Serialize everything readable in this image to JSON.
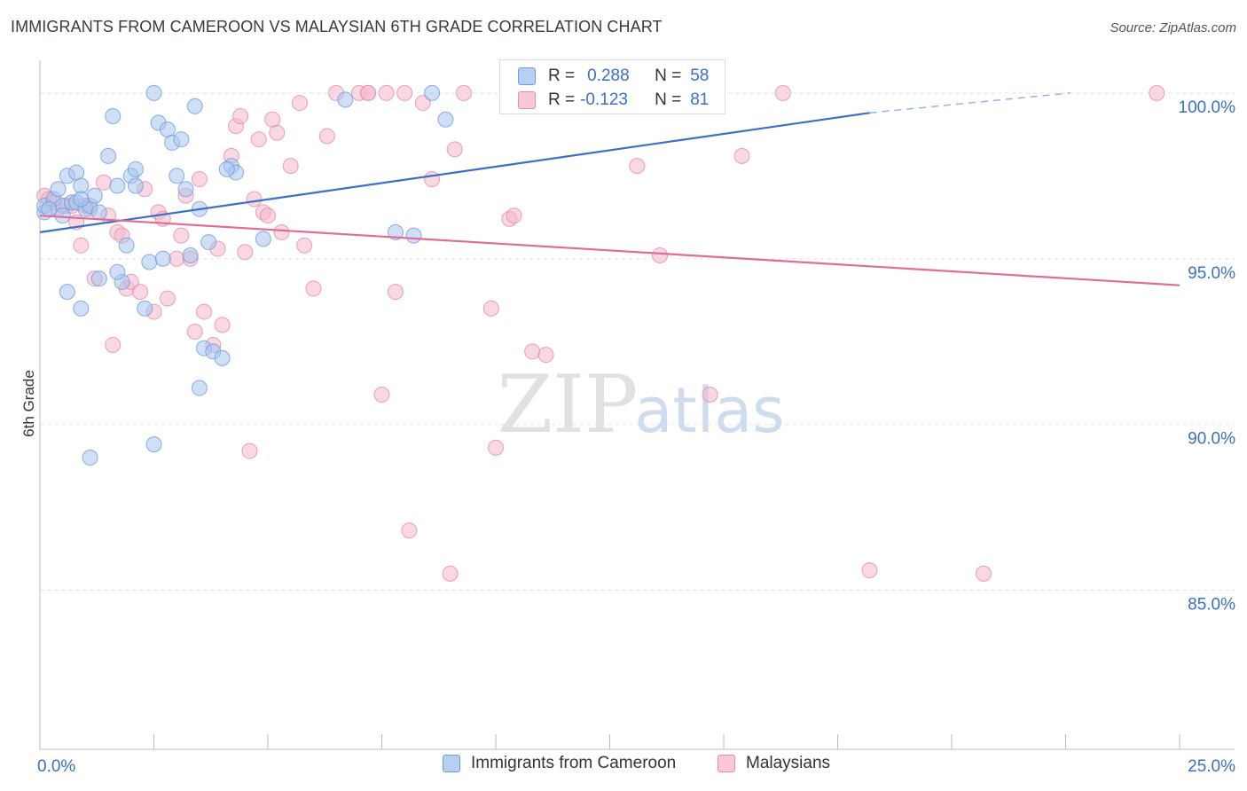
{
  "title": "IMMIGRANTS FROM CAMEROON VS MALAYSIAN 6TH GRADE CORRELATION CHART",
  "source": "Source: ZipAtlas.com",
  "watermark": {
    "zip": "ZIP",
    "atlas": "atlas"
  },
  "colors": {
    "blue": "#3a6fc4",
    "blue_fill": "#a8c4ef",
    "pink": "#e36b97",
    "pink_fill": "#f4b8cc",
    "tick_text": "#3a6fc4"
  },
  "legend": {
    "r_label": "R =",
    "n_label": "N =",
    "series": [
      {
        "r": "0.288",
        "n": "58"
      },
      {
        "r": "-0.123",
        "n": "81"
      }
    ]
  },
  "bottom_legend": [
    "Immigrants from Cameroon",
    "Malaysians"
  ],
  "chart_data": {
    "type": "scatter",
    "title": "IMMIGRANTS FROM CAMEROON VS MALAYSIAN 6TH GRADE CORRELATION CHART",
    "xlabel": "",
    "ylabel": "6th Grade",
    "xlim": [
      0,
      25
    ],
    "ylim": [
      80.2,
      101.2
    ],
    "x_tick_labels": [
      "0.0%",
      "25.0%"
    ],
    "y_ticks": [
      85,
      90,
      95,
      100
    ],
    "y_tick_labels": [
      "85.0%",
      "90.0%",
      "95.0%",
      "100.0%"
    ],
    "grid": true,
    "series": [
      {
        "name": "Immigrants from Cameroon",
        "r": 0.288,
        "n": 58,
        "trend": {
          "x0": 0,
          "y0": 95.8,
          "x1": 18.2,
          "y1": 99.4,
          "dash_x1": 22.6,
          "dash_y1": 100.0
        },
        "points": [
          [
            0.1,
            96.4
          ],
          [
            0.1,
            96.6
          ],
          [
            0.3,
            96.8
          ],
          [
            0.4,
            97.1
          ],
          [
            0.5,
            96.6
          ],
          [
            0.6,
            97.5
          ],
          [
            0.7,
            96.7
          ],
          [
            0.8,
            96.7
          ],
          [
            0.8,
            97.6
          ],
          [
            0.9,
            97.2
          ],
          [
            1.0,
            96.5
          ],
          [
            1.1,
            96.6
          ],
          [
            1.2,
            96.9
          ],
          [
            1.3,
            94.4
          ],
          [
            1.5,
            98.1
          ],
          [
            1.6,
            99.3
          ],
          [
            1.8,
            94.3
          ],
          [
            1.9,
            95.4
          ],
          [
            2.0,
            97.5
          ],
          [
            2.1,
            97.7
          ],
          [
            2.1,
            97.2
          ],
          [
            2.3,
            93.5
          ],
          [
            2.4,
            94.9
          ],
          [
            2.5,
            100.0
          ],
          [
            2.6,
            99.1
          ],
          [
            2.8,
            98.9
          ],
          [
            2.9,
            98.5
          ],
          [
            3.0,
            97.5
          ],
          [
            3.1,
            98.6
          ],
          [
            3.2,
            97.1
          ],
          [
            3.3,
            95.1
          ],
          [
            3.4,
            99.6
          ],
          [
            3.5,
            91.1
          ],
          [
            3.6,
            92.3
          ],
          [
            3.7,
            95.5
          ],
          [
            3.8,
            92.2
          ],
          [
            4.0,
            92.0
          ],
          [
            4.2,
            97.8
          ],
          [
            4.3,
            97.6
          ],
          [
            4.9,
            95.6
          ],
          [
            6.7,
            99.8
          ],
          [
            7.8,
            95.8
          ],
          [
            8.2,
            95.7
          ],
          [
            8.6,
            100.0
          ],
          [
            8.9,
            99.2
          ],
          [
            0.9,
            93.5
          ],
          [
            1.1,
            89.0
          ],
          [
            2.5,
            89.4
          ],
          [
            1.7,
            94.6
          ],
          [
            0.6,
            94.0
          ],
          [
            3.5,
            96.5
          ],
          [
            2.7,
            95.0
          ],
          [
            1.3,
            96.4
          ],
          [
            0.2,
            96.5
          ],
          [
            0.5,
            96.3
          ],
          [
            0.9,
            96.8
          ],
          [
            4.1,
            97.7
          ],
          [
            1.7,
            97.2
          ]
        ]
      },
      {
        "name": "Malaysians",
        "r": -0.123,
        "n": 81,
        "trend": {
          "x0": 0,
          "y0": 96.3,
          "x1": 25,
          "y1": 94.2
        },
        "points": [
          [
            0.1,
            96.9
          ],
          [
            0.2,
            96.8
          ],
          [
            0.4,
            96.5
          ],
          [
            0.6,
            96.6
          ],
          [
            0.7,
            96.6
          ],
          [
            0.8,
            96.1
          ],
          [
            0.9,
            95.4
          ],
          [
            1.0,
            96.6
          ],
          [
            1.1,
            96.5
          ],
          [
            1.2,
            94.4
          ],
          [
            1.4,
            97.3
          ],
          [
            1.5,
            96.3
          ],
          [
            1.6,
            92.4
          ],
          [
            1.7,
            95.8
          ],
          [
            1.8,
            95.7
          ],
          [
            1.9,
            94.1
          ],
          [
            2.0,
            94.3
          ],
          [
            2.2,
            94.0
          ],
          [
            2.3,
            97.1
          ],
          [
            2.5,
            93.4
          ],
          [
            2.6,
            96.4
          ],
          [
            2.7,
            96.2
          ],
          [
            2.8,
            93.8
          ],
          [
            3.0,
            95.0
          ],
          [
            3.1,
            95.7
          ],
          [
            3.2,
            96.9
          ],
          [
            3.3,
            95.0
          ],
          [
            3.4,
            92.8
          ],
          [
            3.5,
            97.4
          ],
          [
            3.6,
            93.4
          ],
          [
            3.8,
            92.4
          ],
          [
            3.9,
            95.3
          ],
          [
            4.0,
            93.0
          ],
          [
            4.2,
            98.1
          ],
          [
            4.3,
            99.0
          ],
          [
            4.4,
            99.3
          ],
          [
            4.5,
            95.2
          ],
          [
            4.6,
            89.2
          ],
          [
            4.7,
            96.8
          ],
          [
            4.8,
            98.6
          ],
          [
            4.9,
            96.4
          ],
          [
            5.0,
            96.3
          ],
          [
            5.1,
            99.2
          ],
          [
            5.2,
            98.8
          ],
          [
            5.3,
            95.8
          ],
          [
            5.5,
            97.8
          ],
          [
            5.7,
            99.7
          ],
          [
            5.8,
            95.4
          ],
          [
            6.0,
            94.1
          ],
          [
            6.3,
            98.7
          ],
          [
            6.5,
            100.0
          ],
          [
            7.0,
            100.0
          ],
          [
            7.2,
            100.0
          ],
          [
            7.5,
            90.9
          ],
          [
            7.6,
            100.0
          ],
          [
            7.8,
            94.0
          ],
          [
            8.0,
            100.0
          ],
          [
            8.1,
            86.8
          ],
          [
            8.4,
            99.7
          ],
          [
            8.6,
            97.4
          ],
          [
            9.0,
            85.5
          ],
          [
            9.1,
            98.3
          ],
          [
            9.3,
            100.0
          ],
          [
            9.9,
            93.5
          ],
          [
            10.0,
            89.3
          ],
          [
            10.3,
            96.2
          ],
          [
            10.4,
            96.3
          ],
          [
            10.8,
            92.2
          ],
          [
            11.1,
            92.1
          ],
          [
            11.7,
            100.0
          ],
          [
            13.1,
            97.8
          ],
          [
            13.6,
            95.1
          ],
          [
            14.0,
            100.0
          ],
          [
            14.7,
            90.9
          ],
          [
            15.4,
            98.1
          ],
          [
            16.3,
            100.0
          ],
          [
            18.2,
            85.6
          ],
          [
            20.7,
            85.5
          ],
          [
            24.5,
            100.0
          ],
          [
            7.2,
            100.0
          ],
          [
            0.3,
            96.7
          ]
        ]
      }
    ]
  }
}
